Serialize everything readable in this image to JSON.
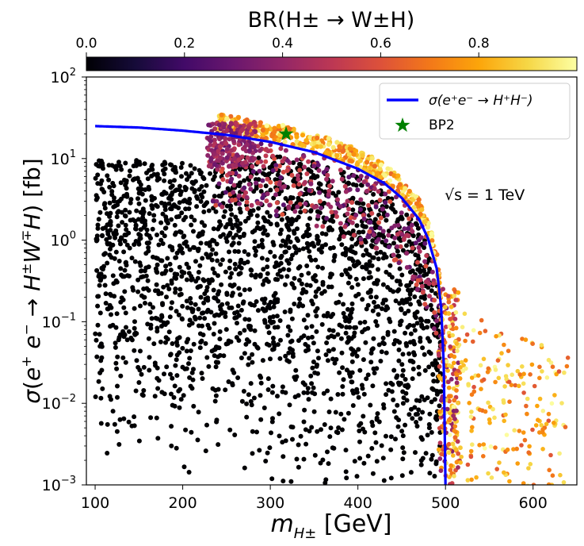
{
  "chart_data": {
    "type": "scatter",
    "colorbar": {
      "title": "BR(H± → W±H)",
      "range": [
        0,
        1
      ],
      "ticks": [
        0.0,
        0.2,
        0.4,
        0.6,
        0.8
      ],
      "tick_labels": [
        "0.0",
        "0.2",
        "0.4",
        "0.6",
        "0.8"
      ],
      "colormap": "inferno"
    },
    "xaxis": {
      "label": "m_{H±} [GeV]",
      "range": [
        90,
        650
      ],
      "ticks": [
        100,
        200,
        300,
        400,
        500,
        600
      ],
      "tick_labels": [
        "100",
        "200",
        "300",
        "400",
        "500",
        "600"
      ]
    },
    "yaxis": {
      "label": "σ(e⁺e⁻ → H±W∓H) [fb]",
      "scale": "log",
      "range": [
        0.001,
        100
      ],
      "ticks": [
        0.001,
        0.01,
        0.1,
        1,
        10,
        100
      ],
      "tick_labels": [
        {
          "base": "10",
          "exp": "−3"
        },
        {
          "base": "10",
          "exp": "−2"
        },
        {
          "base": "10",
          "exp": "−1"
        },
        {
          "base": "10",
          "exp": "0"
        },
        {
          "base": "10",
          "exp": "1"
        },
        {
          "base": "10",
          "exp": "2"
        }
      ]
    },
    "series": [
      {
        "name": "σ(e⁺e⁻ → H⁺H⁻)",
        "type": "line",
        "color": "#0000ff",
        "x": [
          100,
          150,
          200,
          250,
          300,
          350,
          400,
          430,
          450,
          470,
          480,
          490,
          495,
          498,
          500
        ],
        "y": [
          25,
          24,
          22,
          19.5,
          16,
          12,
          7.5,
          5,
          3.3,
          1.8,
          1.05,
          0.45,
          0.15,
          0.03,
          0.001
        ]
      },
      {
        "name": "BP2",
        "type": "marker",
        "marker": "star",
        "color": "#008000",
        "x": [
          318
        ],
        "y": [
          20
        ]
      }
    ],
    "annotation": "√s = 1 TeV",
    "legend": {
      "position": "top-right",
      "entries": [
        "σ(e⁺e⁻ → H⁺H⁻)",
        "BP2"
      ]
    },
    "scatter_regions": [
      {
        "description": "dense low-BR cloud",
        "x_range": [
          100,
          500
        ],
        "br": 0.0
      },
      {
        "description": "upper band near pair-production curve",
        "x_range": [
          225,
          530
        ],
        "br_range": [
          0.3,
          1.0
        ]
      },
      {
        "description": "sparse high-mass tail",
        "x_range": [
          495,
          640
        ],
        "br_range": [
          0.6,
          1.0
        ]
      }
    ]
  }
}
